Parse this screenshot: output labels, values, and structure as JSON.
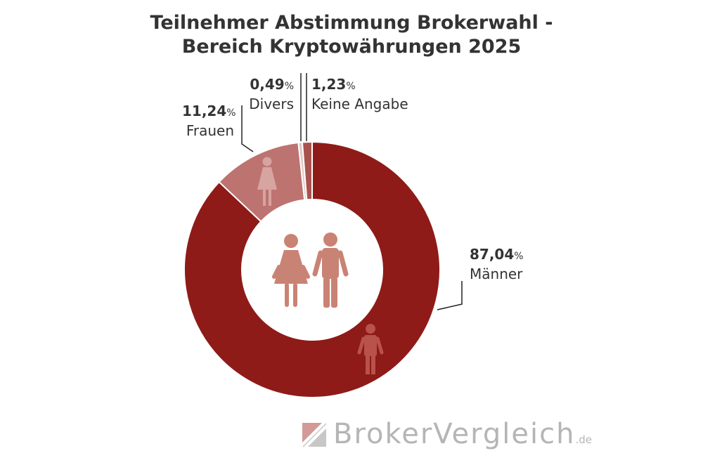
{
  "chart_data": {
    "type": "pie",
    "variant": "donut",
    "title_lines": [
      "Teilnehmer Abstimmung Brokerwahl -",
      "Bereich Kryptowährungen 2025"
    ],
    "slices": [
      {
        "value_text": "87,04",
        "unit": "%",
        "label": "Männer",
        "value": 87.04,
        "color": "#8e1b17"
      },
      {
        "value_text": "11,24",
        "unit": "%",
        "label": "Frauen",
        "value": 11.24,
        "color": "#bd7370"
      },
      {
        "value_text": "0,49",
        "unit": "%",
        "label": "Divers",
        "value": 0.49,
        "color": "#e2c8c6"
      },
      {
        "value_text": "1,23",
        "unit": "%",
        "label": "Keine Angabe",
        "value": 1.23,
        "color": "#a9524d"
      }
    ],
    "start_angle_deg": 0,
    "direction": "clockwise"
  },
  "logo": {
    "text": "BrokerVergleich",
    "tld": ".de"
  },
  "icons": {
    "center": [
      "female-icon",
      "male-icon"
    ],
    "on_slices": [
      "female-icon",
      "male-icon"
    ]
  }
}
